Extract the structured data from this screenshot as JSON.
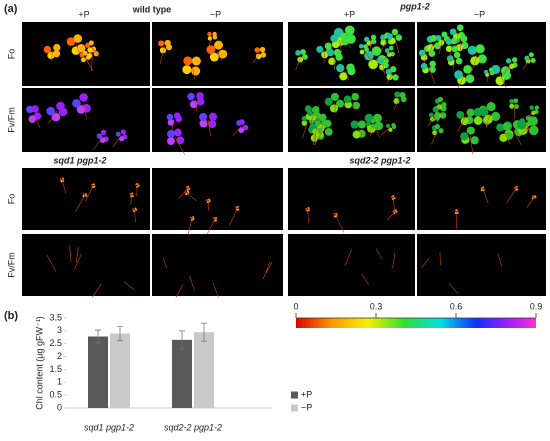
{
  "panel_a": {
    "label": "(a)",
    "blocks": [
      {
        "title": "wild type",
        "columns": [
          "+P",
          "−P"
        ],
        "rows": [
          "Fo",
          "Fv/Fm"
        ]
      },
      {
        "title": "pgp1-2",
        "columns": [
          "+P",
          "−P"
        ]
      },
      {
        "title": "sqd1 pgp1-2",
        "rows": [
          "Fo",
          "Fv/Fm"
        ]
      },
      {
        "title": "sqd2-2 pgp1-2"
      }
    ],
    "colorbar": {
      "lim": [
        0,
        0.9
      ],
      "ticks": [
        0,
        0.3,
        0.6,
        0.9
      ]
    }
  },
  "chart_data": {
    "type": "bar",
    "label": "(b)",
    "y_label": "Chl content (μg gFW⁻¹)",
    "categories": [
      "sqd1 pgp1-2",
      "sqd2-2 pgp1-2"
    ],
    "series": [
      {
        "name": "+P",
        "color": "#595959",
        "values": [
          2.78,
          2.65
        ],
        "errors": [
          0.25,
          0.35
        ]
      },
      {
        "name": "−P",
        "color": "#c9c9c9",
        "values": [
          2.9,
          2.95
        ],
        "errors": [
          0.28,
          0.35
        ]
      }
    ],
    "ylim": [
      0,
      3.5
    ],
    "yticks": [
      0,
      0.5,
      1,
      1.5,
      2,
      2.5,
      3,
      3.5
    ]
  }
}
